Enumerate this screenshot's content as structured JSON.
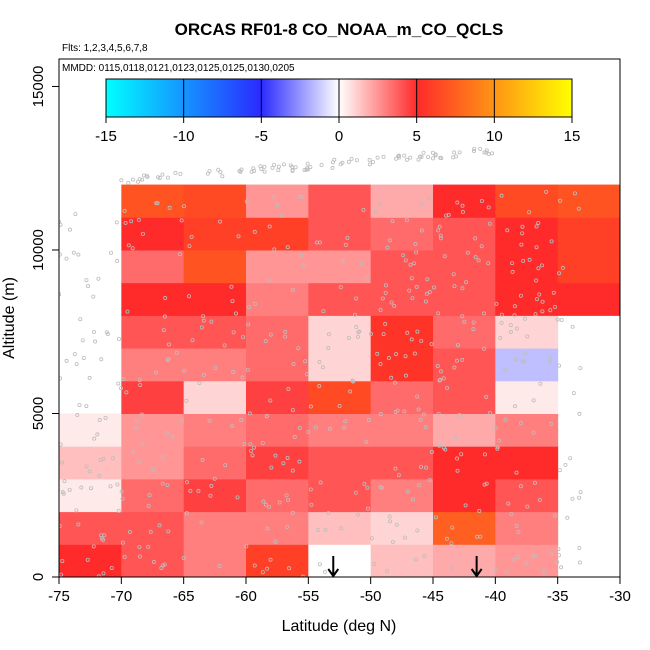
{
  "chart_data": {
    "type": "heatmap",
    "title": "ORCAS RF01-8 CO_NOAA_m_CO_QCLS",
    "subtitle_flights": "Flts: 1,2,3,4,5,6,7,8",
    "subtitle_dates": "MMDD: 0115,0118,0121,0123,0125,0125,0130,0205",
    "xlabel": "Latitude (deg N)",
    "ylabel": "Altitude (m)",
    "xlim": [
      -75,
      -30
    ],
    "ylim": [
      0,
      15000
    ],
    "x_ticks": [
      -75,
      -70,
      -65,
      -60,
      -55,
      -50,
      -45,
      -40,
      -35,
      -30
    ],
    "y_ticks": [
      0,
      5000,
      10000,
      15000
    ],
    "colorbar": {
      "range": [
        -15,
        15
      ],
      "ticks": [
        -15,
        -10,
        -5,
        0,
        5,
        10,
        15
      ],
      "colors": [
        "#00ffff",
        "#2a2aff",
        "#ffffff",
        "#ff2a2a",
        "#ffff00"
      ]
    },
    "x_bin_edges": [
      -75,
      -70,
      -65,
      -60,
      -55,
      -50,
      -45,
      -40,
      -35,
      -30
    ],
    "y_bin_edges": [
      0,
      1000,
      2000,
      3000,
      4000,
      5000,
      6000,
      7000,
      8000,
      9000,
      10000,
      11000,
      12000
    ],
    "cells": [
      [
        5,
        4,
        3,
        6,
        0,
        1.5,
        2,
        2.5,
        null
      ],
      [
        4,
        4,
        3,
        3,
        1.5,
        1,
        7.5,
        3,
        null
      ],
      [
        0.5,
        3.5,
        4.5,
        3.5,
        4,
        3,
        5,
        4,
        null
      ],
      [
        1.5,
        2.5,
        3.5,
        4.5,
        4,
        4,
        5,
        5,
        null
      ],
      [
        0.5,
        2.5,
        3,
        3.5,
        3,
        3,
        2,
        3,
        null
      ],
      [
        null,
        4.5,
        1,
        4.5,
        6.5,
        3.5,
        4,
        0.5,
        null
      ],
      [
        null,
        3,
        3,
        3.5,
        1,
        5.5,
        4,
        -1.5,
        null
      ],
      [
        null,
        4,
        4,
        3.5,
        1,
        5.5,
        3.5,
        1,
        null
      ],
      [
        null,
        5,
        5,
        3,
        4,
        4,
        4,
        5,
        5
      ],
      [
        null,
        3.5,
        7,
        2.5,
        2.5,
        4,
        4,
        5,
        6
      ],
      [
        null,
        5,
        6,
        6,
        4,
        3.5,
        4,
        5,
        6
      ],
      [
        null,
        7,
        6.5,
        2.5,
        4,
        2,
        5,
        6.5,
        7
      ]
    ],
    "arrows_latitude": [
      -53,
      -41.5
    ],
    "grid": false,
    "legend": "colorbar top"
  }
}
